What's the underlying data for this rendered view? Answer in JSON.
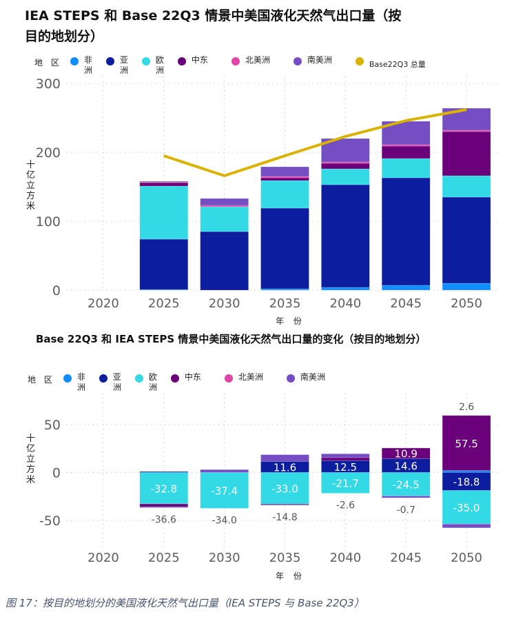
{
  "chart_data": [
    {
      "type": "bar",
      "stacked": true,
      "title": "IEA STEPS 和 Base 22Q3 情景中美国液化天然气出口量（按目的地划分）",
      "xlabel": "年 份",
      "ylabel": "十亿立方米",
      "ylim": [
        0,
        300
      ],
      "yticks": [
        "0",
        "100",
        "200",
        "300"
      ],
      "grid": true,
      "legend_title": "地 区",
      "legend_position": "top",
      "categories": [
        "2020",
        "2025",
        "2030",
        "2035",
        "2040",
        "2045",
        "2050"
      ],
      "series": [
        {
          "name": "非洲",
          "color": "#118DFF",
          "values": [
            0,
            1,
            0,
            2,
            4,
            7,
            10
          ]
        },
        {
          "name": "亚洲",
          "color": "#0C1D9E",
          "values": [
            0,
            73,
            85,
            117,
            149,
            156,
            125
          ]
        },
        {
          "name": "欧洲",
          "color": "#33D9E5",
          "values": [
            0,
            77,
            36,
            40,
            23,
            28,
            31
          ]
        },
        {
          "name": "中东",
          "color": "#6B007B",
          "values": [
            0,
            5,
            0,
            4,
            8,
            18,
            64
          ]
        },
        {
          "name": "北美洲",
          "color": "#E044A7",
          "values": [
            0,
            1,
            2,
            2,
            2,
            2,
            2
          ]
        },
        {
          "name": "南美洲",
          "color": "#744EC2",
          "values": [
            0,
            1,
            10,
            14,
            34,
            34,
            32
          ]
        }
      ],
      "line_series": {
        "name": "Base22Q3 总量",
        "color": "#D9B300",
        "values": [
          null,
          195,
          166,
          195,
          223,
          246,
          262
        ]
      }
    },
    {
      "type": "bar",
      "stacked": true,
      "title": "Base 22Q3 和 IEA STEPS 情景中美国液化天然气出口量的变化（按目的地划分）",
      "xlabel": "年 份",
      "ylabel": "十亿立方米",
      "ylim": [
        -80,
        80
      ],
      "yticks": [
        "-50",
        "0",
        "50"
      ],
      "grid": true,
      "legend_title": "地 区",
      "legend_position": "top",
      "categories": [
        "2020",
        "2025",
        "2030",
        "2035",
        "2040",
        "2045",
        "2050"
      ],
      "series": [
        {
          "name": "非洲",
          "color": "#118DFF",
          "values": [
            0,
            0,
            0,
            0,
            0,
            0,
            2
          ]
        },
        {
          "name": "亚洲",
          "color": "#0C1D9E",
          "values": [
            0,
            1,
            0,
            11.6,
            12.5,
            14.6,
            -18.8
          ]
        },
        {
          "name": "欧洲",
          "color": "#33D9E5",
          "values": [
            0,
            -32.8,
            -37.4,
            -33.0,
            -21.7,
            -24.5,
            -35.0
          ]
        },
        {
          "name": "中东",
          "color": "#6B007B",
          "values": [
            0,
            -3,
            0,
            -1,
            3,
            10.9,
            57.5
          ]
        },
        {
          "name": "北美洲",
          "color": "#E044A7",
          "values": [
            0,
            0,
            0,
            0,
            0,
            0,
            0
          ]
        },
        {
          "name": "南美洲",
          "color": "#744EC2",
          "values": [
            0,
            -1,
            3,
            7,
            4,
            -2,
            -4
          ]
        }
      ],
      "data_labels": {
        "bars": [
          {
            "year": "2025",
            "text": "-32.8",
            "series": "欧洲"
          },
          {
            "year": "2030",
            "text": "-37.4",
            "series": "欧洲"
          },
          {
            "year": "2035",
            "text": "11.6",
            "series": "亚洲"
          },
          {
            "year": "2035",
            "text": "-33.0",
            "series": "欧洲"
          },
          {
            "year": "2040",
            "text": "12.5",
            "series": "亚洲"
          },
          {
            "year": "2040",
            "text": "-21.7",
            "series": "欧洲"
          },
          {
            "year": "2045",
            "text": "10.9",
            "series": "中东"
          },
          {
            "year": "2045",
            "text": "14.6",
            "series": "亚洲"
          },
          {
            "year": "2045",
            "text": "-24.5",
            "series": "欧洲"
          },
          {
            "year": "2050",
            "text": "57.5",
            "series": "中东"
          },
          {
            "year": "2050",
            "text": "-18.8",
            "series": "亚洲"
          },
          {
            "year": "2050",
            "text": "-35.0",
            "series": "欧洲"
          }
        ],
        "totals": [
          {
            "year": "2025",
            "text": "-36.6",
            "value": -36.6
          },
          {
            "year": "2030",
            "text": "-34.0",
            "value": -34.0
          },
          {
            "year": "2035",
            "text": "-14.8",
            "value": -14.8
          },
          {
            "year": "2040",
            "text": "-2.6",
            "value": -2.6
          },
          {
            "year": "2045",
            "text": "-0.7",
            "value": -0.7
          },
          {
            "year": "2050",
            "text": "2.6",
            "value": 2.6
          }
        ]
      }
    }
  ],
  "caption": "图 17：按目的地划分的美国液化天然气出口量（IEA STEPS 与 Base 22Q3）",
  "title1": "IEA STEPS 和 Base 22Q3 情景中美国液化天然气出口量（按目的地划分）",
  "title2": "Base 22Q3 和 IEA STEPS 情景中美国液化天然气出口量的变化（按目的地划分）",
  "legend_title": "地 区",
  "legend_line_label": "Base22Q3 总量",
  "axis_colors": {
    "tick": "#605E5C",
    "grid": "#C8C8C8"
  }
}
